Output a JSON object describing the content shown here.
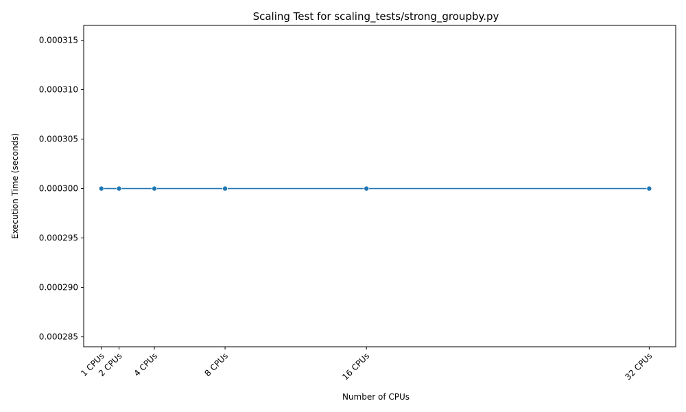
{
  "chart_data": {
    "type": "line",
    "title": "Scaling Test for scaling_tests/strong_groupby.py",
    "xlabel": "Number of CPUs",
    "ylabel": "Execution Time (seconds)",
    "x": [
      1,
      2,
      4,
      8,
      16,
      32
    ],
    "x_tick_labels": [
      "1 CPUs",
      "2 CPUs",
      "4 CPUs",
      "8 CPUs",
      "16 CPUs",
      "32 CPUs"
    ],
    "series": [
      {
        "values": [
          0.0003,
          0.0003,
          0.0003,
          0.0003,
          0.0003,
          0.0003
        ]
      }
    ],
    "xlim": [
      0,
      33.5
    ],
    "ylim": [
      0.000284,
      0.0003165
    ],
    "y_ticks": [
      0.000285,
      0.00029,
      0.000295,
      0.0003,
      0.000305,
      0.00031,
      0.000315
    ],
    "y_tick_labels": [
      "0.000285",
      "0.000290",
      "0.000295",
      "0.000300",
      "0.000305",
      "0.000310",
      "0.000315"
    ],
    "grid": false,
    "legend": "none",
    "colors": {
      "line": "#1f77b4",
      "marker": "#1f77b4"
    }
  }
}
